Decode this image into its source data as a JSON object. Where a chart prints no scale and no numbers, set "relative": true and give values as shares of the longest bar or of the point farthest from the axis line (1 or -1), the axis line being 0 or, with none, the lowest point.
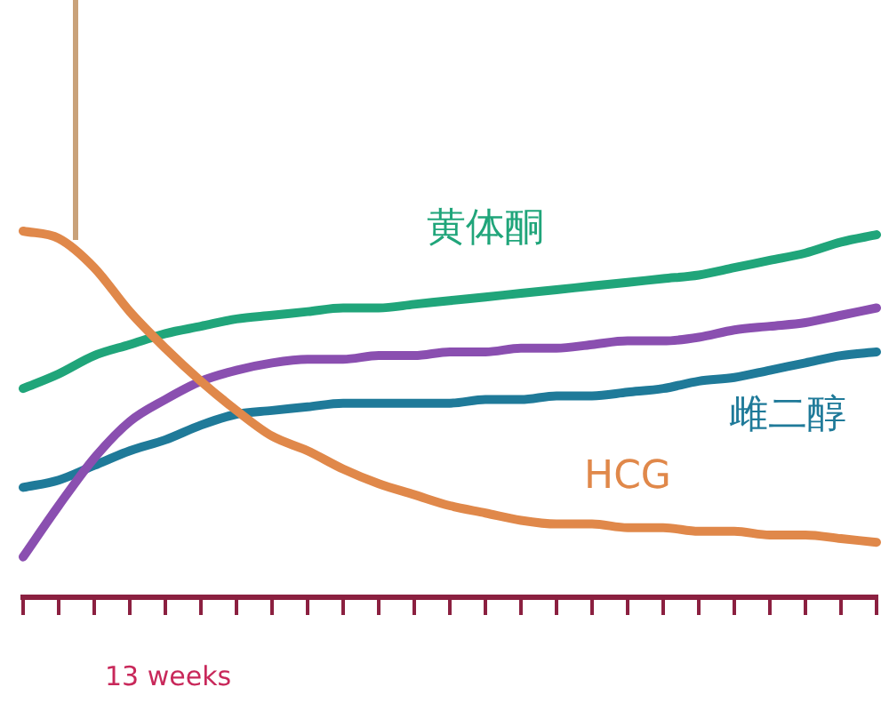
{
  "chart_data": {
    "type": "line",
    "relative": true,
    "legend": false,
    "grid": false,
    "marker": "none",
    "line_style": "solid",
    "annotations": [
      "13 weeks"
    ],
    "categories": [
      null,
      null,
      null,
      null,
      null,
      null,
      null,
      null,
      null,
      null,
      null,
      null,
      null,
      null,
      null,
      null,
      null,
      null,
      null,
      null,
      null,
      null,
      null,
      null,
      null
    ],
    "series": [
      {
        "name": "HCG",
        "color": "#e0884a",
        "values": [
          1,
          0.98,
          0.9,
          0.78,
          0.68,
          0.59,
          0.51,
          0.44,
          0.4,
          0.35,
          0.31,
          0.28,
          0.25,
          0.23,
          0.21,
          0.2,
          0.2,
          0.19,
          0.19,
          0.18,
          0.18,
          0.17,
          0.17,
          0.16,
          0.15
        ]
      },
      {
        "name": "黄体酮",
        "color": "#20a57a",
        "values": [
          0.57,
          0.61,
          0.66,
          0.69,
          0.72,
          0.74,
          0.76,
          0.77,
          0.78,
          0.79,
          0.79,
          0.8,
          0.81,
          0.82,
          0.83,
          0.84,
          0.85,
          0.86,
          0.87,
          0.88,
          0.9,
          0.92,
          0.94,
          0.97,
          0.99
        ]
      },
      {
        "color": "#8a4fb0",
        "values": [
          0.11,
          0.25,
          0.38,
          0.48,
          0.54,
          0.59,
          0.62,
          0.64,
          0.65,
          0.65,
          0.66,
          0.66,
          0.67,
          0.67,
          0.68,
          0.68,
          0.69,
          0.7,
          0.7,
          0.71,
          0.73,
          0.74,
          0.75,
          0.77,
          0.79
        ]
      },
      {
        "name": "雌二醇",
        "color": "#1f7a99",
        "values": [
          0.3,
          0.32,
          0.36,
          0.4,
          0.43,
          0.47,
          0.5,
          0.51,
          0.52,
          0.53,
          0.53,
          0.53,
          0.53,
          0.54,
          0.54,
          0.55,
          0.55,
          0.56,
          0.57,
          0.59,
          0.6,
          0.62,
          0.64,
          0.66,
          0.67
        ]
      }
    ]
  }
}
